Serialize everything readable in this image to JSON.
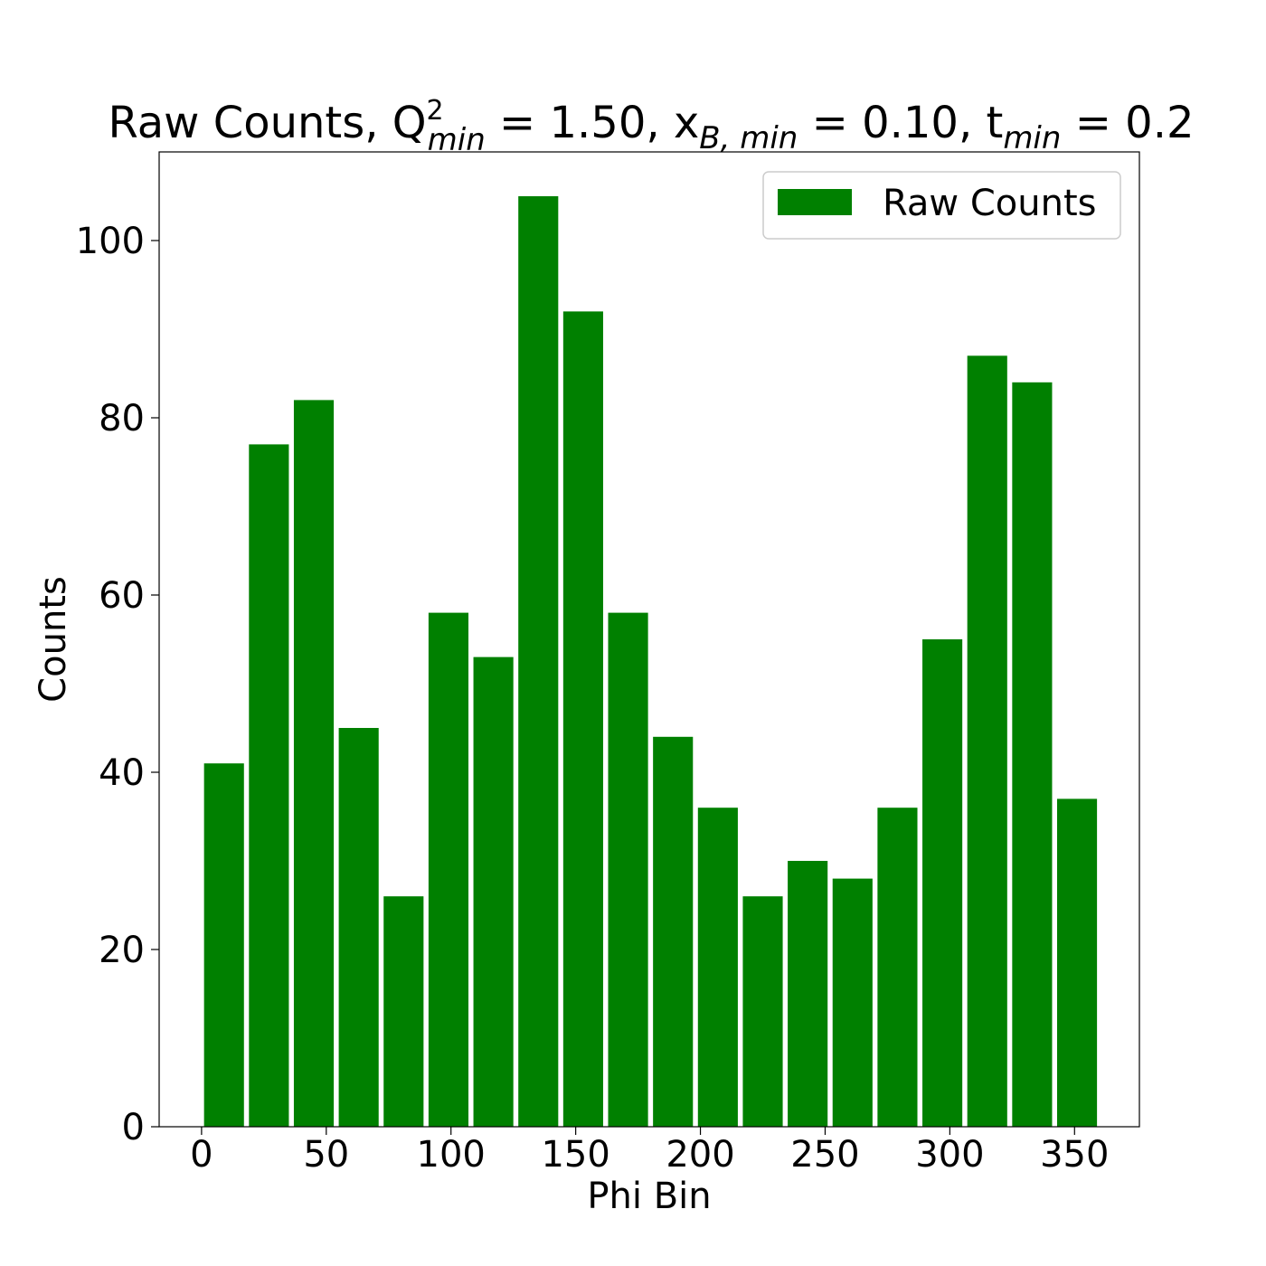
{
  "chart_data": {
    "type": "bar",
    "title": {
      "prefix": "Raw Counts, ",
      "q_base": "Q",
      "q_sup": "2",
      "q_sub": "min",
      "q_value": " = 1.50, ",
      "x_base": "x",
      "x_sub": "B, min",
      "x_value": " = 0.10, ",
      "t_base": "t",
      "t_sub": "min",
      "t_value": " = 0.2"
    },
    "xlabel": "Phi Bin",
    "ylabel": "Counts",
    "xlim": [
      -17,
      376
    ],
    "ylim": [
      0,
      110
    ],
    "xticks": [
      0,
      50,
      100,
      150,
      200,
      250,
      300,
      350
    ],
    "yticks": [
      0,
      20,
      40,
      60,
      80,
      100
    ],
    "bar_width": 16,
    "color": "#008000",
    "legend": {
      "label": "Raw Counts",
      "position": "upper right"
    },
    "grid": false,
    "x": [
      9,
      27,
      45,
      63,
      81,
      99,
      117,
      135,
      153,
      171,
      189,
      207,
      225,
      243,
      261,
      279,
      297,
      315,
      333,
      351
    ],
    "values": [
      41,
      77,
      82,
      45,
      26,
      58,
      53,
      105,
      92,
      58,
      44,
      36,
      26,
      30,
      28,
      36,
      55,
      87,
      84,
      37
    ]
  }
}
